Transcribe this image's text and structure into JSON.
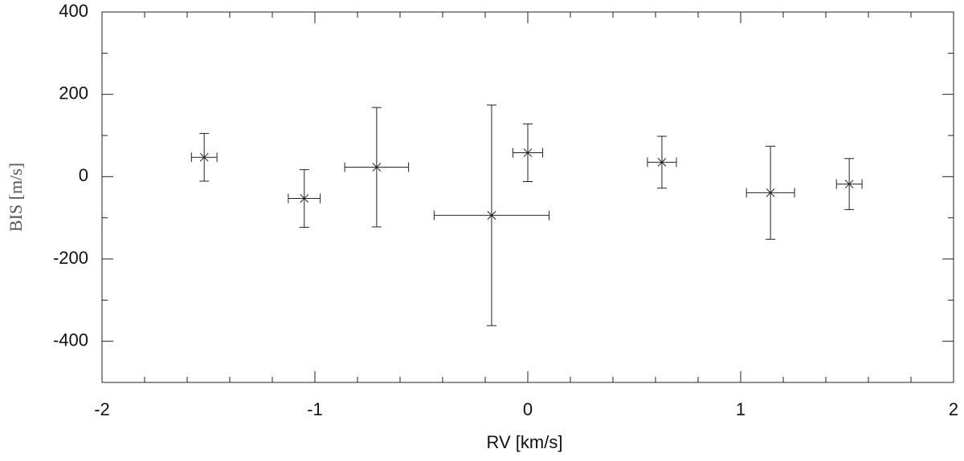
{
  "chart_data": {
    "type": "scatter",
    "xlabel": "RV [km/s]",
    "ylabel": "BIS [m/s]",
    "x": [
      -1.52,
      -1.05,
      -0.71,
      -0.17,
      0.0,
      0.63,
      1.14,
      1.51
    ],
    "values": [
      47,
      -53,
      23,
      -94,
      58,
      35,
      -39,
      -18
    ],
    "xerr": [
      0.06,
      0.075,
      0.15,
      0.27,
      0.07,
      0.068,
      0.113,
      0.06
    ],
    "yerr": [
      58,
      70,
      145,
      268,
      70,
      63,
      113,
      62
    ],
    "color": "#333333",
    "xlim": [
      -2,
      2
    ],
    "ylim": [
      -500,
      400
    ],
    "xticks": [
      -2,
      -1,
      0,
      1,
      2
    ],
    "yticks": [
      -400,
      -200,
      0,
      200,
      400
    ],
    "xminorticks": [
      -1.8,
      -1.6,
      -1.4,
      -1.2,
      -0.8,
      -0.6,
      -0.4,
      -0.2,
      0.2,
      0.4,
      0.6,
      0.8,
      1.2,
      1.4,
      1.6,
      1.8
    ],
    "yminorticks": [
      -500,
      -300,
      -100,
      100,
      300
    ]
  }
}
